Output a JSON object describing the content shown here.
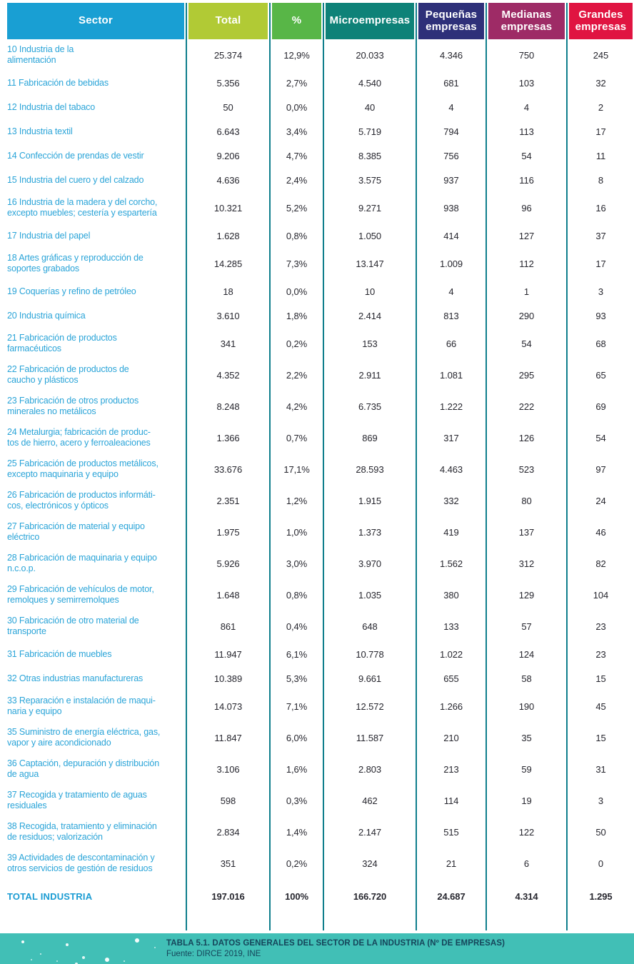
{
  "table": {
    "columns": [
      {
        "key": "sector",
        "label": "Sector",
        "color": "#199fd3"
      },
      {
        "key": "total",
        "label": "Total",
        "color": "#b1ca35"
      },
      {
        "key": "pct",
        "label": "%",
        "color": "#58b647"
      },
      {
        "key": "micro",
        "label": "Microempresas",
        "color": "#0e8278"
      },
      {
        "key": "pequenas",
        "label": "Pequeñas\nempresas",
        "color": "#2e3079"
      },
      {
        "key": "medianas",
        "label": "Medianas\nempresas",
        "color": "#9e2b66"
      },
      {
        "key": "grandes",
        "label": "Grandes\nempresas",
        "color": "#e01441"
      }
    ],
    "rows": [
      {
        "sector": "10 Industria de la\nalimentación",
        "total": "25.374",
        "pct": "12,9%",
        "micro": "20.033",
        "pequenas": "4.346",
        "medianas": "750",
        "grandes": "245"
      },
      {
        "sector": "11 Fabricación de bebidas",
        "total": "5.356",
        "pct": "2,7%",
        "micro": "4.540",
        "pequenas": "681",
        "medianas": "103",
        "grandes": "32"
      },
      {
        "sector": "12 Industria del tabaco",
        "total": "50",
        "pct": "0,0%",
        "micro": "40",
        "pequenas": "4",
        "medianas": "4",
        "grandes": "2"
      },
      {
        "sector": "13 Industria textil",
        "total": "6.643",
        "pct": "3,4%",
        "micro": "5.719",
        "pequenas": "794",
        "medianas": "113",
        "grandes": "17"
      },
      {
        "sector": "14 Confección de prendas de vestir",
        "total": "9.206",
        "pct": "4,7%",
        "micro": "8.385",
        "pequenas": "756",
        "medianas": "54",
        "grandes": "11"
      },
      {
        "sector": "15 Industria del cuero y del calzado",
        "total": "4.636",
        "pct": "2,4%",
        "micro": "3.575",
        "pequenas": "937",
        "medianas": "116",
        "grandes": "8"
      },
      {
        "sector": "16 Industria de la madera y del corcho,\nexcepto muebles; cestería y espartería",
        "total": "10.321",
        "pct": "5,2%",
        "micro": "9.271",
        "pequenas": "938",
        "medianas": "96",
        "grandes": "16"
      },
      {
        "sector": "17 Industria del papel",
        "total": "1.628",
        "pct": "0,8%",
        "micro": "1.050",
        "pequenas": "414",
        "medianas": "127",
        "grandes": "37"
      },
      {
        "sector": "18 Artes gráficas y reproducción de\nsoportes grabados",
        "total": "14.285",
        "pct": "7,3%",
        "micro": "13.147",
        "pequenas": "1.009",
        "medianas": "112",
        "grandes": "17"
      },
      {
        "sector": "19 Coquerías y refino de petróleo",
        "total": "18",
        "pct": "0,0%",
        "micro": "10",
        "pequenas": "4",
        "medianas": "1",
        "grandes": "3"
      },
      {
        "sector": "20 Industria química",
        "total": "3.610",
        "pct": "1,8%",
        "micro": "2.414",
        "pequenas": "813",
        "medianas": "290",
        "grandes": "93"
      },
      {
        "sector": "21 Fabricación de productos\nfarmacéuticos",
        "total": "341",
        "pct": "0,2%",
        "micro": "153",
        "pequenas": "66",
        "medianas": "54",
        "grandes": "68"
      },
      {
        "sector": "22 Fabricación de productos de\ncaucho y plásticos",
        "total": "4.352",
        "pct": "2,2%",
        "micro": "2.911",
        "pequenas": "1.081",
        "medianas": "295",
        "grandes": "65"
      },
      {
        "sector": "23 Fabricación de otros productos\nminerales no metálicos",
        "total": "8.248",
        "pct": "4,2%",
        "micro": "6.735",
        "pequenas": "1.222",
        "medianas": "222",
        "grandes": "69"
      },
      {
        "sector": "24 Metalurgia; fabricación de produc-\ntos de hierro, acero y ferroaleaciones",
        "total": "1.366",
        "pct": "0,7%",
        "micro": "869",
        "pequenas": "317",
        "medianas": "126",
        "grandes": "54"
      },
      {
        "sector": "25 Fabricación de productos metálicos,\nexcepto maquinaria y equipo",
        "total": "33.676",
        "pct": "17,1%",
        "micro": "28.593",
        "pequenas": "4.463",
        "medianas": "523",
        "grandes": "97"
      },
      {
        "sector": "26 Fabricación de productos informáti-\ncos, electrónicos y ópticos",
        "total": "2.351",
        "pct": "1,2%",
        "micro": "1.915",
        "pequenas": "332",
        "medianas": "80",
        "grandes": "24"
      },
      {
        "sector": "27 Fabricación de material y equipo\neléctrico",
        "total": "1.975",
        "pct": "1,0%",
        "micro": "1.373",
        "pequenas": "419",
        "medianas": "137",
        "grandes": "46"
      },
      {
        "sector": "28 Fabricación de maquinaria y equipo\nn.c.o.p.",
        "total": "5.926",
        "pct": "3,0%",
        "micro": "3.970",
        "pequenas": "1.562",
        "medianas": "312",
        "grandes": "82"
      },
      {
        "sector": "29 Fabricación de vehículos de motor,\nremolques y semirremolques",
        "total": "1.648",
        "pct": "0,8%",
        "micro": "1.035",
        "pequenas": "380",
        "medianas": "129",
        "grandes": "104"
      },
      {
        "sector": "30 Fabricación de otro material de\ntransporte",
        "total": "861",
        "pct": "0,4%",
        "micro": "648",
        "pequenas": "133",
        "medianas": "57",
        "grandes": "23"
      },
      {
        "sector": "31 Fabricación de muebles",
        "total": "11.947",
        "pct": "6,1%",
        "micro": "10.778",
        "pequenas": "1.022",
        "medianas": "124",
        "grandes": "23"
      },
      {
        "sector": "32 Otras industrias manufactureras",
        "total": "10.389",
        "pct": "5,3%",
        "micro": "9.661",
        "pequenas": "655",
        "medianas": "58",
        "grandes": "15"
      },
      {
        "sector": "33 Reparación e instalación de maqui-\nnaria y equipo",
        "total": "14.073",
        "pct": "7,1%",
        "micro": "12.572",
        "pequenas": "1.266",
        "medianas": "190",
        "grandes": "45"
      },
      {
        "sector": "35 Suministro de energía eléctrica, gas,\nvapor y aire acondicionado",
        "total": "11.847",
        "pct": "6,0%",
        "micro": "11.587",
        "pequenas": "210",
        "medianas": "35",
        "grandes": "15"
      },
      {
        "sector": "36 Captación, depuración y distribución\nde agua",
        "total": "3.106",
        "pct": "1,6%",
        "micro": "2.803",
        "pequenas": "213",
        "medianas": "59",
        "grandes": "31"
      },
      {
        "sector": "37 Recogida y tratamiento de aguas\nresiduales",
        "total": "598",
        "pct": "0,3%",
        "micro": "462",
        "pequenas": "114",
        "medianas": "19",
        "grandes": "3"
      },
      {
        "sector": "38 Recogida, tratamiento y eliminación\nde residuos; valorización",
        "total": "2.834",
        "pct": "1,4%",
        "micro": "2.147",
        "pequenas": "515",
        "medianas": "122",
        "grandes": "50"
      },
      {
        "sector": "39 Actividades de descontaminación y\notros servicios de gestión de residuos",
        "total": "351",
        "pct": "0,2%",
        "micro": "324",
        "pequenas": "21",
        "medianas": "6",
        "grandes": "0"
      }
    ],
    "total_row": {
      "sector": "TOTAL INDUSTRIA",
      "total": "197.016",
      "pct": "100%",
      "micro": "166.720",
      "pequenas": "24.687",
      "medianas": "4.314",
      "grandes": "1.295"
    }
  },
  "footer": {
    "title": "TABLA 5.1. DATOS GENERALES DEL SECTOR DE LA INDUSTRIA (Nº DE EMPRESAS)",
    "source": "Fuente: DIRCE 2019, INE"
  },
  "colors": {
    "line": "#0e7e8c",
    "sector_text": "#2aa4d8",
    "value_text": "#26262e",
    "total_text": "#1b9cd3",
    "footer_band": "#41bfb6",
    "footer_text": "#15455a"
  }
}
